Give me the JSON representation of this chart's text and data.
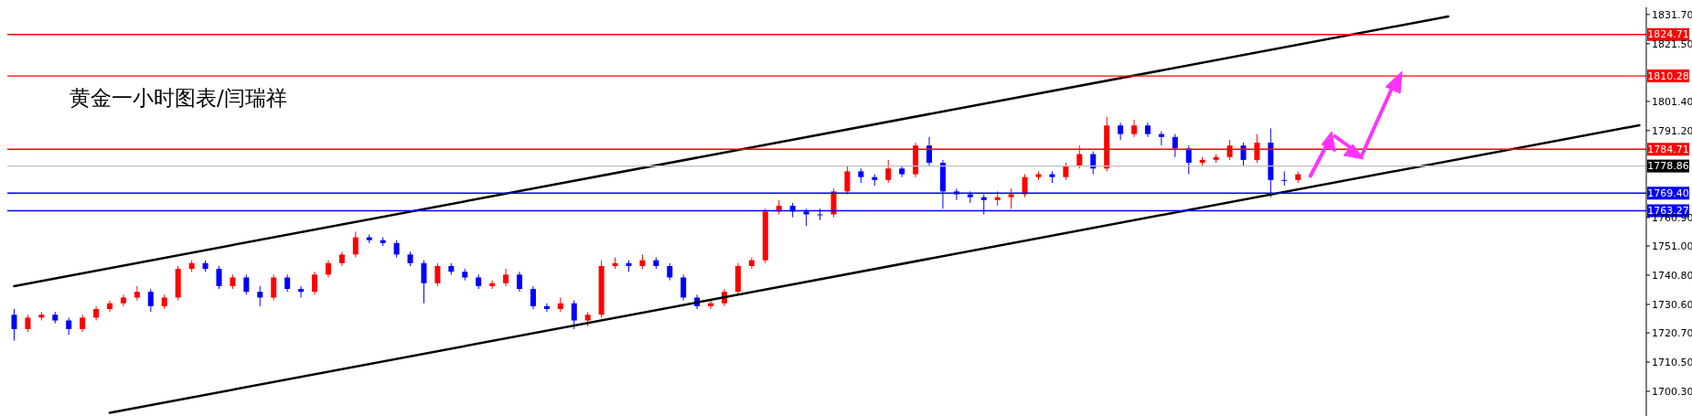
{
  "chart_data": {
    "type": "candlestick",
    "title": "黄金一小时图表/闫瑞祥",
    "categories": [
      null,
      null,
      null,
      null,
      null,
      null,
      null,
      null,
      null,
      null,
      null,
      null,
      null,
      null,
      null,
      null,
      null,
      null,
      null,
      null,
      null,
      null,
      null,
      null,
      null,
      null,
      null,
      null,
      null,
      null,
      null,
      null,
      null,
      null,
      null,
      null,
      null,
      null,
      null,
      null,
      null,
      null,
      null,
      null,
      null,
      null,
      null,
      null,
      null,
      null,
      null,
      null,
      null,
      null,
      null,
      null,
      null,
      null,
      null,
      null,
      null,
      null,
      null,
      null,
      null,
      null,
      null,
      null,
      null,
      null,
      null,
      null,
      null,
      null,
      null,
      null,
      null,
      null,
      null,
      null,
      null,
      null,
      null,
      null,
      null,
      null,
      null,
      null,
      null,
      null,
      null,
      null,
      null,
      null,
      null,
      null,
      null,
      null,
      null,
      null,
      null,
      null,
      null,
      null,
      null,
      null,
      null,
      null,
      null,
      null,
      null,
      null,
      null,
      null,
      null,
      null,
      null,
      null,
      null,
      null
    ],
    "series": [
      {
        "ohlc": [
          [
            1727,
            1729,
            1718,
            1722
          ],
          [
            1722,
            1727,
            1721,
            1726
          ],
          [
            1726,
            1728,
            1725,
            1727
          ],
          [
            1727,
            1728,
            1724,
            1725
          ],
          [
            1725,
            1726,
            1720,
            1722
          ],
          [
            1722,
            1727,
            1721,
            1726
          ],
          [
            1726,
            1730,
            1725,
            1729
          ],
          [
            1729,
            1732,
            1728,
            1731
          ],
          [
            1731,
            1734,
            1730,
            1733
          ],
          [
            1733,
            1737,
            1732,
            1735
          ],
          [
            1735,
            1736,
            1728,
            1730
          ],
          [
            1730,
            1734,
            1729,
            1733
          ],
          [
            1733,
            1744,
            1732,
            1743
          ],
          [
            1743,
            1746,
            1742,
            1745
          ],
          [
            1745,
            1746,
            1742,
            1743
          ],
          [
            1743,
            1744,
            1736,
            1737
          ],
          [
            1737,
            1741,
            1736,
            1740
          ],
          [
            1740,
            1741,
            1734,
            1735
          ],
          [
            1735,
            1737,
            1730,
            1733
          ],
          [
            1733,
            1741,
            1732,
            1740
          ],
          [
            1740,
            1741,
            1735,
            1736
          ],
          [
            1736,
            1737,
            1733,
            1735
          ],
          [
            1735,
            1742,
            1734,
            1741
          ],
          [
            1741,
            1746,
            1740,
            1745
          ],
          [
            1745,
            1749,
            1744,
            1748
          ],
          [
            1748,
            1756,
            1747,
            1754
          ],
          [
            1754,
            1755,
            1752,
            1753
          ],
          [
            1753,
            1754,
            1751,
            1752
          ],
          [
            1752,
            1753,
            1747,
            1748
          ],
          [
            1748,
            1749,
            1744,
            1745
          ],
          [
            1745,
            1746,
            1731,
            1738
          ],
          [
            1738,
            1745,
            1737,
            1744
          ],
          [
            1744,
            1745,
            1741,
            1742
          ],
          [
            1742,
            1743,
            1739,
            1740
          ],
          [
            1740,
            1741,
            1736,
            1737
          ],
          [
            1737,
            1739,
            1736,
            1738
          ],
          [
            1738,
            1743,
            1737,
            1741
          ],
          [
            1741,
            1742,
            1735,
            1736
          ],
          [
            1736,
            1737,
            1729,
            1730
          ],
          [
            1730,
            1731,
            1728,
            1729
          ],
          [
            1729,
            1733,
            1728,
            1731
          ],
          [
            1731,
            1732,
            1722,
            1725
          ],
          [
            1725,
            1728,
            1723,
            1727
          ],
          [
            1727,
            1746,
            1726,
            1744
          ],
          [
            1744,
            1747,
            1743,
            1745
          ],
          [
            1745,
            1746,
            1742,
            1744
          ],
          [
            1744,
            1748,
            1743,
            1746
          ],
          [
            1746,
            1747,
            1743,
            1744
          ],
          [
            1744,
            1745,
            1739,
            1740
          ],
          [
            1740,
            1741,
            1732,
            1733
          ],
          [
            1733,
            1734,
            1729,
            1730
          ],
          [
            1730,
            1732,
            1729,
            1731
          ],
          [
            1731,
            1736,
            1730,
            1735
          ],
          [
            1735,
            1745,
            1734,
            1744
          ],
          [
            1744,
            1747,
            1743,
            1746
          ],
          [
            1746,
            1764,
            1745,
            1763
          ],
          [
            1763,
            1767,
            1762,
            1765
          ],
          [
            1765,
            1766,
            1761,
            1763
          ],
          [
            1763,
            1764,
            1758,
            1762
          ],
          [
            1762,
            1764,
            1760,
            1762
          ],
          [
            1762,
            1771,
            1761,
            1770
          ],
          [
            1770,
            1779,
            1769,
            1777
          ],
          [
            1777,
            1778,
            1773,
            1775
          ],
          [
            1775,
            1776,
            1772,
            1774
          ],
          [
            1774,
            1781,
            1773,
            1778
          ],
          [
            1778,
            1779,
            1775,
            1776
          ],
          [
            1776,
            1787,
            1775,
            1786
          ],
          [
            1786,
            1789,
            1779,
            1780
          ],
          [
            1780,
            1781,
            1764,
            1770
          ],
          [
            1770,
            1771,
            1767,
            1769
          ],
          [
            1769,
            1770,
            1766,
            1768
          ],
          [
            1768,
            1769,
            1762,
            1767
          ],
          [
            1767,
            1770,
            1765,
            1768
          ],
          [
            1768,
            1771,
            1764,
            1769
          ],
          [
            1769,
            1776,
            1768,
            1775
          ],
          [
            1775,
            1777,
            1774,
            1776
          ],
          [
            1776,
            1777,
            1773,
            1775
          ],
          [
            1775,
            1780,
            1774,
            1779
          ],
          [
            1779,
            1786,
            1778,
            1783
          ],
          [
            1783,
            1784,
            1776,
            1778
          ],
          [
            1778,
            1796,
            1777,
            1793
          ],
          [
            1793,
            1794,
            1788,
            1790
          ],
          [
            1790,
            1795,
            1789,
            1793
          ],
          [
            1793,
            1794,
            1789,
            1790
          ],
          [
            1790,
            1791,
            1786,
            1789
          ],
          [
            1789,
            1790,
            1782,
            1785
          ],
          [
            1785,
            1786,
            1776,
            1780
          ],
          [
            1780,
            1782,
            1779,
            1781
          ],
          [
            1781,
            1783,
            1780,
            1782
          ],
          [
            1782,
            1788,
            1781,
            1786
          ],
          [
            1786,
            1787,
            1779,
            1781
          ],
          [
            1781,
            1790,
            1780,
            1787
          ],
          [
            1787,
            1792,
            1768,
            1774
          ],
          [
            1774,
            1777,
            1772,
            1774
          ],
          [
            1774,
            1777,
            1773,
            1776
          ],
          null,
          null,
          null,
          null,
          null,
          null,
          null,
          null,
          null,
          null,
          null,
          null,
          null,
          null,
          null,
          null,
          null,
          null,
          null,
          null,
          null,
          null,
          null,
          null,
          null
        ],
        "colors": [
          "#0000ff",
          "#ff0000",
          "#ff0000",
          "#0000ff",
          "#0000ff",
          "#ff0000",
          "#ff0000",
          "#ff0000",
          "#ff0000",
          "#ff0000",
          "#0000ff",
          "#ff0000",
          "#ff0000",
          "#ff0000",
          "#0000ff",
          "#0000ff",
          "#ff0000",
          "#0000ff",
          "#0000ff",
          "#ff0000",
          "#0000ff",
          "#0000ff",
          "#ff0000",
          "#ff0000",
          "#ff0000",
          "#ff0000",
          "#0000ff",
          "#0000ff",
          "#0000ff",
          "#0000ff",
          "#0000ff",
          "#ff0000",
          "#0000ff",
          "#0000ff",
          "#0000ff",
          "#ff0000",
          "#ff0000",
          "#0000ff",
          "#0000ff",
          "#0000ff",
          "#ff0000",
          "#0000ff",
          "#ff0000",
          "#ff0000",
          "#ff0000",
          "#0000ff",
          "#ff0000",
          "#0000ff",
          "#0000ff",
          "#0000ff",
          "#0000ff",
          "#ff0000",
          "#ff0000",
          "#ff0000",
          "#ff0000",
          "#ff0000",
          "#ff0000",
          "#0000ff",
          "#0000ff",
          "#0000ff",
          "#ff0000",
          "#ff0000",
          "#0000ff",
          "#0000ff",
          "#ff0000",
          "#0000ff",
          "#ff0000",
          "#0000ff",
          "#0000ff",
          "#0000ff",
          "#0000ff",
          "#0000ff",
          "#ff0000",
          "#ff0000",
          "#ff0000",
          "#ff0000",
          "#0000ff",
          "#ff0000",
          "#ff0000",
          "#0000ff",
          "#ff0000",
          "#0000ff",
          "#ff0000",
          "#0000ff",
          "#0000ff",
          "#0000ff",
          "#0000ff",
          "#ff0000",
          "#ff0000",
          "#ff0000",
          "#0000ff",
          "#ff0000",
          "#0000ff",
          "#0000ff",
          "#ff0000",
          null,
          null,
          null,
          null,
          null,
          null,
          null,
          null,
          null,
          null,
          null,
          null,
          null,
          null,
          null,
          null,
          null,
          null,
          null,
          null,
          null,
          null,
          null,
          null,
          null
        ]
      },
      {
        "type": "line",
        "color": "#000000",
        "values": [
          1737.0,
          null,
          null,
          null,
          null,
          null,
          null,
          null,
          null,
          null,
          null,
          null,
          null,
          null,
          null,
          null,
          null,
          null,
          null,
          null,
          null,
          null,
          null,
          null,
          null,
          null,
          null,
          null,
          null,
          null,
          null,
          null,
          null,
          null,
          null,
          null,
          null,
          null,
          null,
          null,
          null,
          null,
          null,
          null,
          null,
          null,
          null,
          null,
          null,
          null,
          null,
          null,
          null,
          null,
          null,
          null,
          null,
          null,
          null,
          null,
          null,
          null,
          null,
          null,
          null,
          null,
          null,
          null,
          null,
          null,
          null,
          null,
          null,
          null,
          null,
          null,
          null,
          null,
          null,
          null,
          null,
          null,
          null,
          null,
          null,
          null,
          null,
          null,
          null,
          null,
          null,
          null,
          null,
          null,
          null,
          null,
          null,
          null,
          null,
          null,
          null,
          null,
          null,
          null,
          null,
          1831.0,
          null,
          null,
          null,
          null,
          null,
          null,
          null,
          null,
          null,
          null,
          null,
          null,
          null,
          null
        ]
      },
      {
        "type": "line",
        "color": "#000000",
        "values": [
          null,
          null,
          null,
          null,
          null,
          null,
          null,
          1692.8,
          null,
          null,
          null,
          null,
          null,
          null,
          null,
          null,
          null,
          null,
          null,
          null,
          null,
          null,
          null,
          null,
          null,
          null,
          null,
          null,
          null,
          null,
          null,
          null,
          null,
          null,
          null,
          null,
          null,
          null,
          null,
          null,
          null,
          null,
          null,
          null,
          null,
          null,
          null,
          null,
          null,
          null,
          null,
          null,
          null,
          null,
          null,
          null,
          null,
          null,
          null,
          null,
          null,
          null,
          null,
          null,
          null,
          null,
          null,
          null,
          null,
          null,
          null,
          null,
          null,
          null,
          null,
          null,
          null,
          null,
          null,
          null,
          null,
          null,
          null,
          null,
          null,
          null,
          null,
          null,
          null,
          null,
          null,
          null,
          null,
          null,
          null,
          null,
          null,
          null,
          null,
          null,
          null,
          null,
          null,
          null,
          null,
          null,
          null,
          null,
          null,
          null,
          null,
          null,
          null,
          null,
          null,
          null,
          null,
          null,
          null,
          1793.1
        ]
      }
    ],
    "ylim": [
      1691.7,
      1834.2
    ],
    "yticks": [
      {
        "value": 1700.3,
        "label": "1700.30"
      },
      {
        "value": 1710.5,
        "label": "1710.50"
      },
      {
        "value": 1720.7,
        "label": "1720.70"
      },
      {
        "value": 1730.6,
        "label": "1730.60"
      },
      {
        "value": 1740.8,
        "label": "1740.80"
      },
      {
        "value": 1751.0,
        "label": "1751.00"
      },
      {
        "value": 1760.9,
        "label": "1760.90"
      },
      {
        "value": 1791.2,
        "label": "1791.20"
      },
      {
        "value": 1801.4,
        "label": "1801.40"
      },
      {
        "value": 1821.5,
        "label": "1821.50"
      },
      {
        "value": 1831.7,
        "label": "1831.70"
      }
    ],
    "ref_lines": [
      {
        "axis": "y",
        "value": 1824.71,
        "label": "1824.71",
        "color": "#ff0000"
      },
      {
        "axis": "y",
        "value": 1810.28,
        "label": "1810.28",
        "color": "#ff0000"
      },
      {
        "axis": "y",
        "value": 1784.71,
        "label": "1784.71",
        "color": "#ff0000"
      },
      {
        "axis": "y",
        "value": 1778.86,
        "label": "1778.86",
        "color": "#c0c0c0"
      },
      {
        "axis": "y",
        "value": 1769.4,
        "label": "1769.40",
        "color": "#0000ff"
      },
      {
        "axis": "y",
        "value": 1763.27,
        "label": "1763.27",
        "color": "#0000ff"
      }
    ],
    "grid": false,
    "legend": false,
    "tick_labels": "y"
  }
}
